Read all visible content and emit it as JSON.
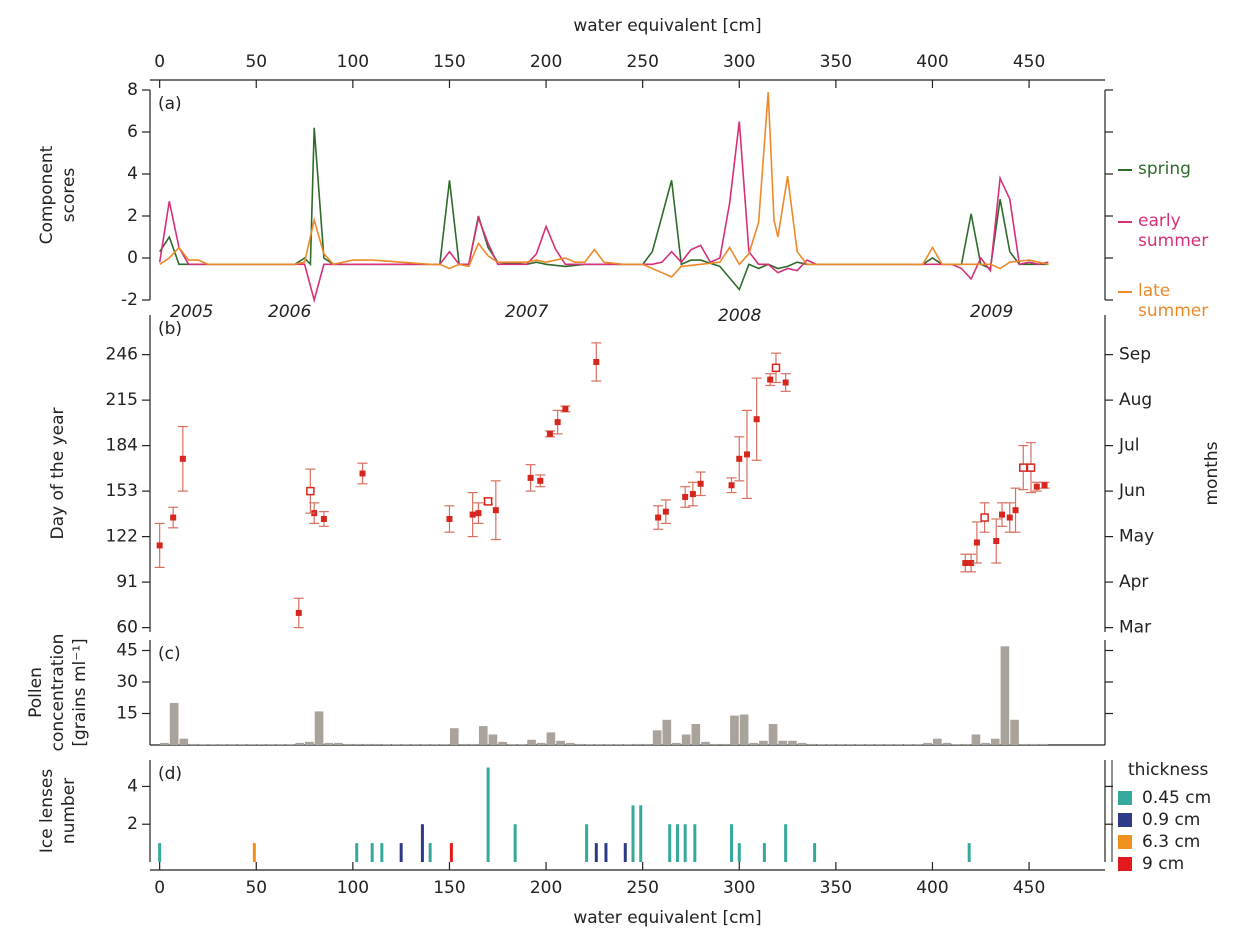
{
  "chart_data": [
    {
      "type": "line",
      "panel_label": "(a)",
      "xlabel": "water equivalent [cm]",
      "xlim": [
        -5,
        489.3
      ],
      "xticks": [
        0,
        50,
        100,
        150,
        200,
        250,
        300,
        350,
        400,
        450
      ],
      "ylabel": [
        "Component",
        "scores"
      ],
      "ylim": [
        -2,
        8
      ],
      "yticks": [
        -2,
        0,
        2,
        4,
        6,
        8
      ],
      "annotations": [
        "2005",
        "2006",
        "2007",
        "2008",
        "2009"
      ],
      "series": [
        {
          "name": "spring",
          "color": "#2e6b2a",
          "x": [
            0,
            5,
            10,
            15,
            70,
            75,
            78,
            80,
            85,
            90,
            140,
            145,
            150,
            155,
            160,
            165,
            170,
            175,
            190,
            195,
            200,
            210,
            220,
            250,
            255,
            260,
            265,
            270,
            275,
            280,
            290,
            300,
            305,
            310,
            315,
            320,
            325,
            330,
            335,
            395,
            400,
            405,
            415,
            420,
            425,
            430,
            435,
            440,
            445,
            460
          ],
          "values": [
            0.3,
            1.0,
            -0.3,
            -0.3,
            -0.3,
            0,
            -0.3,
            6.2,
            0,
            -0.3,
            -0.3,
            -0.3,
            3.7,
            -0.3,
            -0.3,
            2.0,
            0.5,
            -0.2,
            -0.3,
            -0.2,
            -0.3,
            -0.4,
            -0.3,
            -0.3,
            0.3,
            2.0,
            3.7,
            -0.3,
            -0.1,
            -0.1,
            -0.4,
            -1.5,
            -0.3,
            -0.5,
            -0.3,
            -0.5,
            -0.4,
            -0.2,
            -0.3,
            -0.3,
            0,
            -0.3,
            -0.3,
            2.1,
            -0.3,
            -0.5,
            2.8,
            0.3,
            -0.3,
            -0.3
          ]
        },
        {
          "name": "early summer",
          "color": "#d6307a",
          "x": [
            0,
            5,
            10,
            15,
            70,
            75,
            80,
            85,
            145,
            150,
            155,
            160,
            165,
            170,
            175,
            190,
            195,
            200,
            205,
            210,
            255,
            260,
            265,
            270,
            275,
            280,
            285,
            290,
            295,
            300,
            305,
            310,
            315,
            320,
            325,
            330,
            335,
            340,
            400,
            410,
            415,
            420,
            425,
            430,
            435,
            440,
            445,
            450,
            455,
            460
          ],
          "values": [
            -0.2,
            2.7,
            0.5,
            -0.3,
            -0.3,
            -0.3,
            -2.0,
            -0.3,
            -0.3,
            0.3,
            -0.3,
            -0.3,
            1.9,
            0.7,
            -0.3,
            -0.3,
            0.2,
            1.5,
            0.4,
            -0.3,
            -0.3,
            -0.2,
            0.3,
            -0.2,
            0.4,
            0.6,
            -0.2,
            0,
            2.6,
            6.5,
            0.3,
            -0.3,
            -0.3,
            -0.7,
            -0.5,
            -0.6,
            -0.1,
            -0.3,
            -0.3,
            -0.3,
            -0.5,
            -1.0,
            0,
            -0.6,
            3.8,
            2.8,
            -0.3,
            -0.2,
            -0.3,
            -0.2
          ]
        },
        {
          "name": "late summer",
          "color": "#ec8a2a",
          "x": [
            0,
            5,
            10,
            15,
            20,
            25,
            70,
            75,
            80,
            85,
            90,
            100,
            110,
            140,
            145,
            150,
            155,
            160,
            165,
            170,
            175,
            190,
            195,
            200,
            210,
            215,
            220,
            225,
            230,
            240,
            250,
            255,
            260,
            265,
            270,
            280,
            290,
            295,
            300,
            305,
            310,
            315,
            318,
            320,
            325,
            330,
            335,
            395,
            400,
            405,
            420,
            430,
            435,
            440,
            450,
            460
          ],
          "values": [
            -0.3,
            0,
            0.5,
            -0.1,
            -0.1,
            -0.3,
            -0.3,
            -0.2,
            1.8,
            0.2,
            -0.3,
            -0.1,
            -0.1,
            -0.3,
            -0.3,
            -0.5,
            -0.3,
            -0.4,
            0.7,
            0.1,
            -0.2,
            -0.2,
            -0.1,
            -0.2,
            0,
            -0.2,
            -0.2,
            0.4,
            -0.2,
            -0.3,
            -0.3,
            -0.5,
            -0.7,
            -0.9,
            -0.4,
            -0.3,
            -0.2,
            0.5,
            -0.3,
            0.2,
            1.7,
            7.9,
            1.8,
            1.0,
            3.9,
            0.3,
            -0.3,
            -0.3,
            0.5,
            -0.3,
            -0.3,
            -0.3,
            -0.5,
            -0.2,
            -0.1,
            -0.3
          ]
        }
      ]
    },
    {
      "type": "scatter",
      "panel_label": "(b)",
      "xlim": [
        -5,
        489.3
      ],
      "ylabel": "Day of the year",
      "ylim": [
        57,
        273
      ],
      "yticks": [
        60,
        91,
        122,
        153,
        184,
        215,
        246
      ],
      "y2label": "months",
      "y2lim": [
        57,
        273
      ],
      "y2ticks": [
        {
          "value": 60,
          "label": "Mar"
        },
        {
          "value": 91,
          "label": "Apr"
        },
        {
          "value": 122,
          "label": "May"
        },
        {
          "value": 153,
          "label": "Jun"
        },
        {
          "value": 184,
          "label": "Jul"
        },
        {
          "value": 215,
          "label": "Aug"
        },
        {
          "value": 246,
          "label": "Sep"
        }
      ],
      "series": [
        {
          "marker": "filled",
          "color": "#d7261e",
          "x": [
            0,
            7,
            12,
            72,
            80,
            85,
            105,
            150,
            162,
            165,
            174,
            192,
            197,
            202,
            206,
            210,
            226,
            258,
            262,
            272,
            276,
            280,
            296,
            300,
            304,
            309,
            316,
            324,
            417,
            420,
            423,
            433,
            436,
            440,
            443,
            454,
            458
          ],
          "values": [
            116,
            135,
            175,
            70,
            138,
            134,
            165,
            134,
            137,
            138,
            140,
            162,
            160,
            192,
            200,
            209,
            241,
            135,
            139,
            149,
            151,
            158,
            157,
            175,
            178,
            202,
            229,
            227,
            104,
            104,
            118,
            119,
            137,
            135,
            140,
            156,
            157
          ],
          "errors": [
            15,
            7,
            22,
            10,
            7,
            5,
            7,
            9,
            15,
            7,
            20,
            9,
            4,
            2,
            8,
            2,
            13,
            8,
            8,
            7,
            8,
            8,
            5,
            15,
            30,
            28,
            4,
            6,
            6,
            6,
            14,
            15,
            8,
            10,
            15,
            3,
            2
          ]
        },
        {
          "marker": "open",
          "color": "#d7261e",
          "x": [
            78,
            170,
            319,
            427,
            447,
            451
          ],
          "values": [
            153,
            146,
            237,
            135,
            169,
            169
          ],
          "errors": [
            15,
            2,
            10,
            10,
            15,
            17
          ]
        }
      ]
    },
    {
      "type": "histogram",
      "panel_label": "(c)",
      "xlim": [
        -5,
        489.3
      ],
      "ylabel": [
        "Pollen",
        "concentration",
        "[grains ml⁻¹]"
      ],
      "ylim": [
        0,
        50
      ],
      "yticks": [
        15,
        30,
        45
      ],
      "color": "#aaa39b",
      "bins": [
        0,
        5,
        10,
        15,
        20,
        25,
        30,
        35,
        40,
        45,
        50,
        55,
        60,
        65,
        70,
        75,
        80,
        85,
        90,
        95,
        100,
        105,
        110,
        115,
        120,
        125,
        130,
        135,
        140,
        145,
        150,
        155,
        160,
        165,
        170,
        175,
        180,
        185,
        190,
        195,
        200,
        205,
        210,
        215,
        220,
        225,
        230,
        235,
        240,
        245,
        250,
        255,
        260,
        265,
        270,
        275,
        280,
        285,
        290,
        295,
        300,
        305,
        310,
        315,
        320,
        325,
        330,
        335,
        340,
        345,
        350,
        355,
        360,
        365,
        370,
        375,
        380,
        385,
        390,
        395,
        400,
        405,
        410,
        415,
        420,
        425,
        430,
        435,
        440,
        445,
        450,
        455,
        460
      ],
      "counts": [
        1,
        20,
        3,
        0.5,
        0.3,
        0.3,
        0.3,
        0.3,
        0.3,
        0.3,
        0.3,
        0.3,
        0.3,
        0.3,
        1,
        1.5,
        16,
        1,
        1,
        0.5,
        0.5,
        0.5,
        0.5,
        0.3,
        0.3,
        0.3,
        0.3,
        0.3,
        0.3,
        0.3,
        8,
        0.5,
        0.5,
        9,
        5,
        1.5,
        0.3,
        0.3,
        2.5,
        1,
        6,
        2,
        1,
        0.5,
        0.3,
        0.3,
        0.3,
        0.3,
        0.3,
        0.5,
        0.5,
        7,
        12,
        1,
        5,
        10,
        1.5,
        0.5,
        0.5,
        14,
        14.5,
        1,
        2,
        10,
        2,
        2,
        1,
        0.5,
        0.3,
        0.3,
        0.3,
        0.3,
        0.3,
        0.3,
        0.3,
        0.3,
        0.3,
        0.3,
        0.3,
        1,
        3,
        1,
        0.3,
        0.5,
        5,
        1,
        3,
        47,
        12,
        0.5,
        0.5,
        0.5
      ]
    },
    {
      "type": "bar",
      "panel_label": "(d)",
      "xlabel": "water equivalent [cm]",
      "xlim": [
        -5,
        489.3
      ],
      "xticks": [
        0,
        50,
        100,
        150,
        200,
        250,
        300,
        350,
        400,
        450
      ],
      "ylabel": [
        "Ice lenses",
        "number"
      ],
      "ylim": [
        0,
        5.4
      ],
      "yticks": [
        2,
        4
      ],
      "legend_title": "thickness",
      "series": [
        {
          "name": "0.45 cm",
          "color": "#35a99c",
          "x": [
            0,
            102,
            110,
            115,
            140,
            170,
            184,
            221,
            245,
            249,
            264,
            268,
            272,
            277,
            296,
            300,
            313,
            324,
            339,
            419
          ],
          "values": [
            1,
            1,
            1,
            1,
            1,
            5,
            2,
            2,
            3,
            3,
            2,
            2,
            2,
            2,
            2,
            1,
            1,
            2,
            1,
            1
          ]
        },
        {
          "name": "0.9 cm",
          "color": "#2e3a87",
          "x": [
            125,
            136,
            226,
            231,
            241
          ],
          "values": [
            1,
            2,
            1,
            1,
            1
          ]
        },
        {
          "name": "6.3 cm",
          "color": "#f0901e",
          "x": [
            49
          ],
          "values": [
            1
          ]
        },
        {
          "name": "9 cm",
          "color": "#e31a1c",
          "x": [
            151
          ],
          "values": [
            1
          ]
        }
      ]
    }
  ]
}
